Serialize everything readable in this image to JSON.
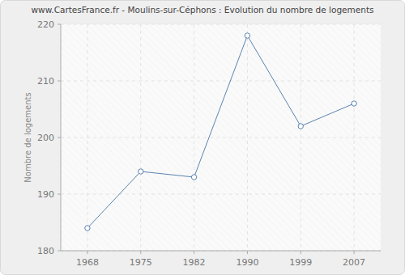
{
  "chart_data": {
    "type": "line",
    "title": "www.CartesFrance.fr - Moulins-sur-Céphons : Evolution du nombre de logements",
    "y_label": "Nombre de logements",
    "categories": [
      "1968",
      "1975",
      "1982",
      "1990",
      "1999",
      "2007"
    ],
    "values": [
      184,
      194,
      193,
      218,
      202,
      206
    ],
    "color": "#5b84b0",
    "marker": "circle",
    "ylim": [
      180,
      220
    ],
    "yticks": [
      180,
      190,
      200,
      210,
      220
    ],
    "grid": true
  }
}
